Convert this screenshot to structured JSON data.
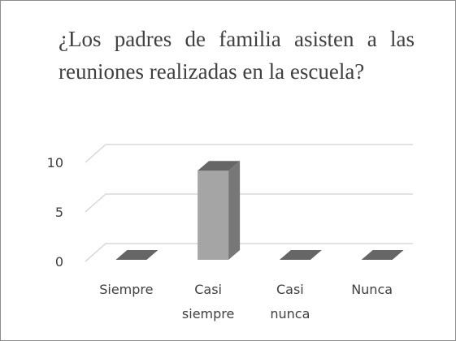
{
  "chart_data": {
    "type": "bar3d",
    "title": "¿Los padres de familia asisten a las reuniones realizadas en la escuela?",
    "categories": [
      "Siempre",
      "Casi siempre",
      "Casi nunca",
      "Nunca"
    ],
    "values": [
      0,
      9,
      0,
      0
    ],
    "color": "#a5a5a5",
    "ylim": [
      0,
      10
    ],
    "yticks": [
      0,
      5,
      10
    ],
    "grid": true
  }
}
